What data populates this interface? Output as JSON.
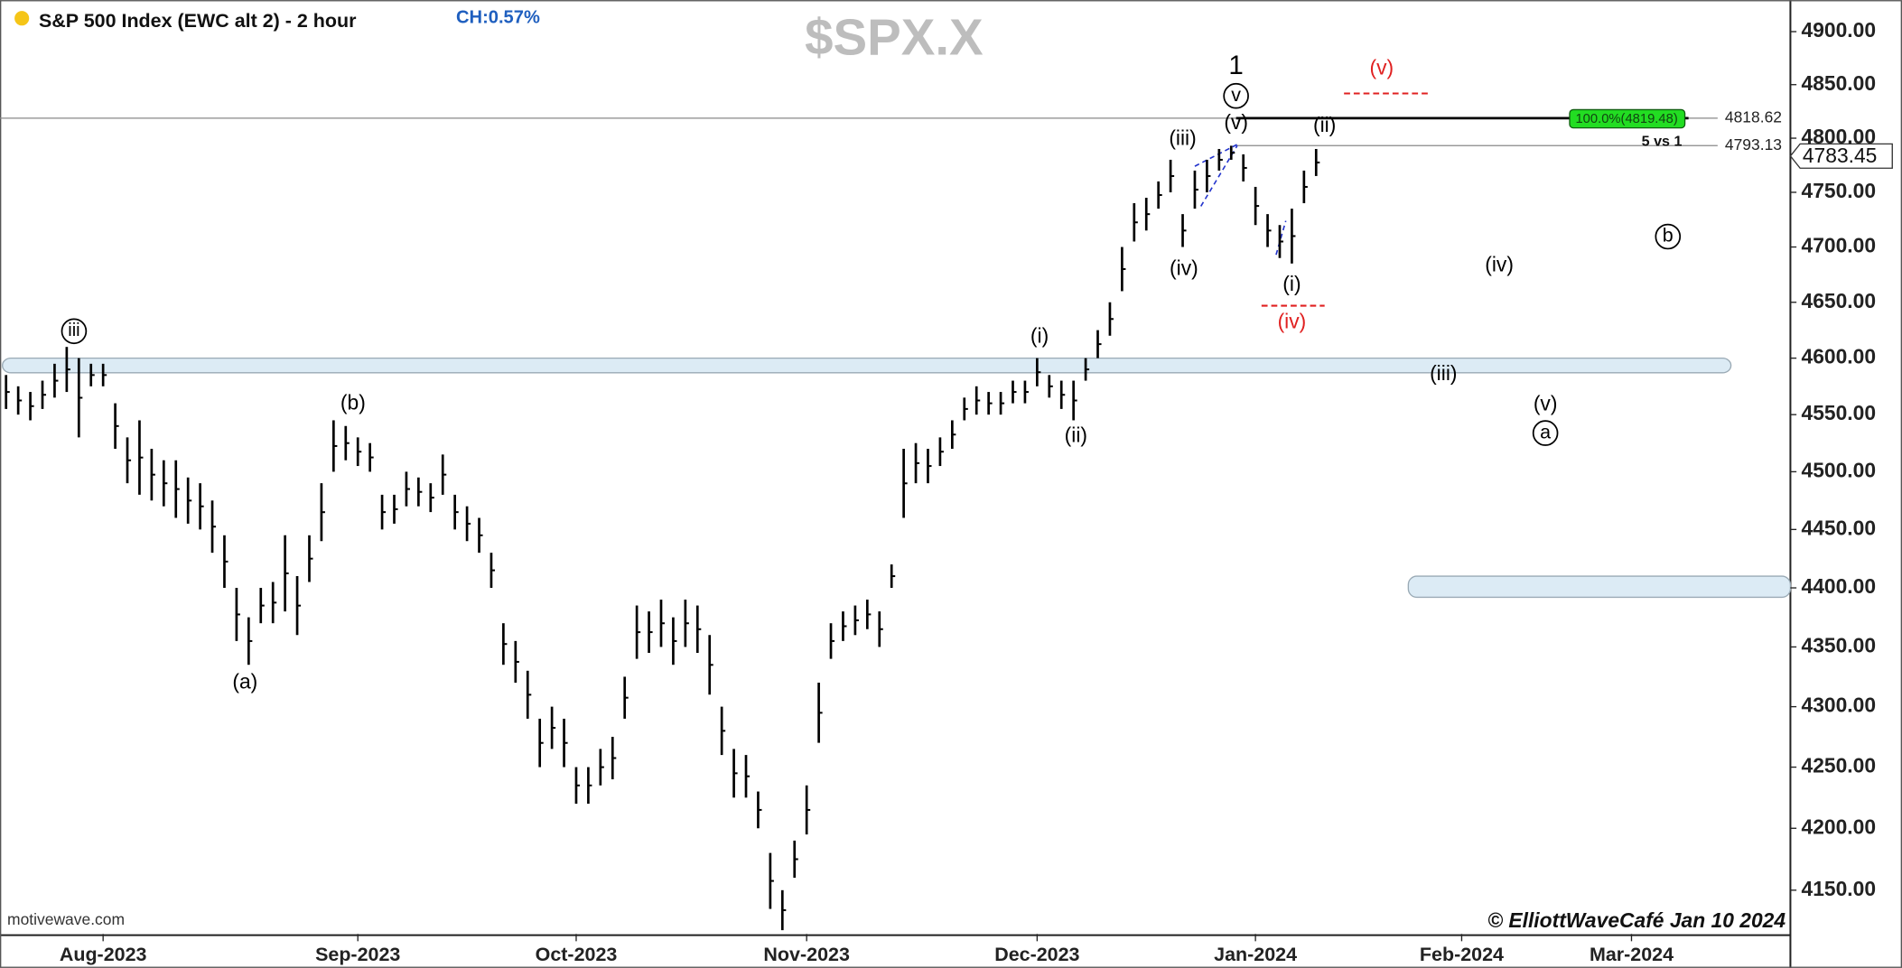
{
  "chart_data": {
    "type": "ohlc",
    "title": "S&P 500 Index (EWC alt 2) - 2 hour",
    "change": "CH:0.57%",
    "symbol": "$SPX.X",
    "source": "motivewave.com",
    "credit": "© ElliottWaveCafé Jan 10 2024",
    "color": "#000000",
    "log_scale": true,
    "ylim": [
      4115,
      4930
    ],
    "yticks": [
      {
        "value": 4150,
        "label": "4150.00"
      },
      {
        "value": 4200,
        "label": "4200.00"
      },
      {
        "value": 4250,
        "label": "4250.00"
      },
      {
        "value": 4300,
        "label": "4300.00"
      },
      {
        "value": 4350,
        "label": "4350.00"
      },
      {
        "value": 4400,
        "label": "4400.00"
      },
      {
        "value": 4450,
        "label": "4450.00"
      },
      {
        "value": 4500,
        "label": "4500.00"
      },
      {
        "value": 4550,
        "label": "4550.00"
      },
      {
        "value": 4600,
        "label": "4600.00"
      },
      {
        "value": 4650,
        "label": "4650.00"
      },
      {
        "value": 4700,
        "label": "4700.00"
      },
      {
        "value": 4750,
        "label": "4750.00"
      },
      {
        "value": 4800,
        "label": "4800.00"
      },
      {
        "value": 4850,
        "label": "4850.00"
      },
      {
        "value": 4900,
        "label": "4900.00"
      }
    ],
    "categories": [
      null,
      null,
      null,
      null,
      null,
      null,
      null,
      null,
      "Aug-2023",
      null,
      null,
      null,
      null,
      null,
      null,
      null,
      null,
      null,
      null,
      null,
      null,
      null,
      null,
      null,
      null,
      null,
      null,
      null,
      null,
      "Sep-2023",
      null,
      null,
      null,
      null,
      null,
      null,
      null,
      null,
      null,
      null,
      null,
      null,
      null,
      null,
      null,
      null,
      null,
      "Oct-2023",
      null,
      null,
      null,
      null,
      null,
      null,
      null,
      null,
      null,
      null,
      null,
      null,
      null,
      null,
      null,
      null,
      null,
      null,
      "Nov-2023",
      null,
      null,
      null,
      null,
      null,
      null,
      null,
      null,
      null,
      null,
      null,
      null,
      null,
      null,
      null,
      null,
      null,
      null,
      "Dec-2023",
      null,
      null,
      null,
      null,
      null,
      null,
      null,
      null,
      null,
      null,
      null,
      null,
      null,
      null,
      null,
      null,
      null,
      "Jan-2024",
      null,
      null,
      null,
      null,
      null,
      null,
      null,
      null,
      null,
      null,
      null,
      null,
      null,
      null,
      null,
      null,
      "Feb-2024",
      null,
      null,
      null,
      null,
      null,
      null,
      null,
      null,
      null,
      null,
      null,
      null,
      null,
      "Mar-2024",
      null,
      null,
      null,
      null,
      null,
      null,
      null,
      null,
      null,
      null,
      null,
      null,
      null
    ],
    "high": [
      4585,
      4575,
      4570,
      4580,
      4595,
      4610,
      4600,
      4595,
      4595,
      4560,
      4530,
      4545,
      4520,
      4510,
      4510,
      4495,
      4490,
      4475,
      4445,
      4400,
      4375,
      4400,
      4405,
      4445,
      4410,
      4445,
      4490,
      4545,
      4540,
      4530,
      4525,
      4480,
      4480,
      4500,
      4495,
      4490,
      4515,
      4480,
      4470,
      4460,
      4430,
      4370,
      4355,
      4330,
      4290,
      4300,
      4290,
      4250,
      4250,
      4265,
      4275,
      4325,
      4385,
      4380,
      4390,
      4375,
      4390,
      4385,
      4360,
      4300,
      4265,
      4260,
      4230,
      4180,
      4150,
      4190,
      4235,
      4320,
      4370,
      4380,
      4385,
      4390,
      4380,
      4420,
      4520,
      4525,
      4520,
      4530,
      4545,
      4565,
      4575,
      4570,
      4570,
      4580,
      4580,
      4600,
      4585,
      4580,
      4580,
      4600,
      4625,
      4650,
      4700,
      4740,
      4745,
      4760,
      4780,
      4730,
      4770,
      4780,
      4790,
      4793,
      4785,
      4755,
      4730,
      4720,
      4735,
      4770,
      4790,
      null,
      null,
      null,
      null,
      null,
      null,
      null,
      null,
      null,
      null,
      null,
      null,
      null,
      null,
      null,
      null,
      null,
      null,
      null,
      null,
      null,
      null,
      null,
      null,
      null,
      null,
      null,
      null,
      null,
      null,
      null,
      null,
      null,
      null,
      null,
      null,
      null,
      null,
      null
    ],
    "low": [
      4555,
      4550,
      4545,
      4555,
      4565,
      4570,
      4530,
      4575,
      4575,
      4520,
      4490,
      4480,
      4475,
      4470,
      4460,
      4455,
      4450,
      4430,
      4400,
      4355,
      4335,
      4370,
      4370,
      4380,
      4360,
      4405,
      4440,
      4500,
      4510,
      4505,
      4500,
      4450,
      4455,
      4470,
      4470,
      4465,
      4480,
      4450,
      4440,
      4430,
      4400,
      4335,
      4320,
      4290,
      4250,
      4265,
      4250,
      4220,
      4220,
      4235,
      4240,
      4290,
      4340,
      4345,
      4350,
      4335,
      4350,
      4345,
      4310,
      4260,
      4225,
      4225,
      4200,
      4135,
      4118,
      4160,
      4195,
      4270,
      4340,
      4355,
      4360,
      4365,
      4350,
      4400,
      4460,
      4490,
      4490,
      4505,
      4520,
      4545,
      4550,
      4550,
      4550,
      4560,
      4560,
      4575,
      4565,
      4555,
      4545,
      4580,
      4600,
      4620,
      4660,
      4705,
      4715,
      4735,
      4750,
      4700,
      4735,
      4750,
      4770,
      4780,
      4760,
      4720,
      4700,
      4690,
      4685,
      4740,
      4765,
      null,
      null,
      null,
      null,
      null,
      null,
      null,
      null,
      null,
      null,
      null,
      null,
      null,
      null,
      null,
      null,
      null,
      null,
      null,
      null,
      null,
      null,
      null,
      null,
      null,
      null,
      null,
      null,
      null,
      null,
      null,
      null,
      null,
      null,
      null,
      null,
      null,
      null,
      null
    ],
    "last_price": 4783.45,
    "levels": [
      {
        "value": 4818.62
      },
      {
        "value": 4793.13
      }
    ],
    "target_label": "100.0%(4819.48)",
    "level_note": "5 vs 1",
    "zones": [
      {
        "from": 4587,
        "to": 4600
      },
      {
        "from": 4392,
        "to": 4410
      }
    ],
    "annotations": [
      "1",
      "v",
      "(v)",
      "(iii)",
      "(ii)",
      "(iv)",
      "(i)",
      "(iv)",
      "(v)",
      "(i)",
      "(ii)",
      "iii",
      "(b)",
      "(a)",
      "(iv)",
      "(iii)",
      "(v)",
      "a",
      "b"
    ]
  }
}
